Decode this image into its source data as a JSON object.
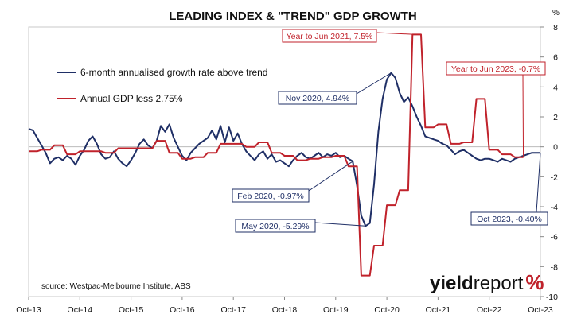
{
  "chart_data": {
    "type": "line",
    "title": "LEADING INDEX & \"TREND\" GDP GROWTH",
    "y_unit": "%",
    "ylim": [
      -10,
      8
    ],
    "yticks": [
      -10,
      -8,
      -6,
      -4,
      -2,
      0,
      2,
      4,
      6,
      8
    ],
    "xlim": [
      "2013-10",
      "2023-10"
    ],
    "x_tick_labels": [
      "Oct-13",
      "Oct-14",
      "Oct-15",
      "Oct-16",
      "Oct-17",
      "Oct-18",
      "Oct-19",
      "Oct-20",
      "Oct-21",
      "Oct-22",
      "Oct-23"
    ],
    "legend_position": "top-left",
    "grid": false,
    "series": [
      {
        "name": "6-month annualised growth rate above trend",
        "color": "#1f2f66",
        "points": [
          [
            "2013-10",
            1.2
          ],
          [
            "2013-11",
            1.1
          ],
          [
            "2013-12",
            0.6
          ],
          [
            "2014-01",
            0.1
          ],
          [
            "2014-02",
            -0.4
          ],
          [
            "2014-03",
            -1.1
          ],
          [
            "2014-04",
            -0.8
          ],
          [
            "2014-05",
            -0.7
          ],
          [
            "2014-06",
            -0.9
          ],
          [
            "2014-07",
            -0.6
          ],
          [
            "2014-08",
            -0.8
          ],
          [
            "2014-09",
            -1.2
          ],
          [
            "2014-10",
            -0.6
          ],
          [
            "2014-11",
            -0.2
          ],
          [
            "2014-12",
            0.4
          ],
          [
            "2015-01",
            0.7
          ],
          [
            "2015-02",
            0.2
          ],
          [
            "2015-03",
            -0.5
          ],
          [
            "2015-04",
            -0.8
          ],
          [
            "2015-05",
            -0.7
          ],
          [
            "2015-06",
            -0.3
          ],
          [
            "2015-07",
            -0.8
          ],
          [
            "2015-08",
            -1.1
          ],
          [
            "2015-09",
            -1.3
          ],
          [
            "2015-10",
            -0.9
          ],
          [
            "2015-11",
            -0.4
          ],
          [
            "2015-12",
            0.2
          ],
          [
            "2016-01",
            0.5
          ],
          [
            "2016-02",
            0.1
          ],
          [
            "2016-03",
            -0.1
          ],
          [
            "2016-04",
            0.4
          ],
          [
            "2016-05",
            1.4
          ],
          [
            "2016-06",
            1.0
          ],
          [
            "2016-07",
            1.5
          ],
          [
            "2016-08",
            0.6
          ],
          [
            "2016-09",
            0.0
          ],
          [
            "2016-10",
            -0.6
          ],
          [
            "2016-11",
            -0.9
          ],
          [
            "2016-12",
            -0.4
          ],
          [
            "2017-01",
            -0.1
          ],
          [
            "2017-02",
            0.2
          ],
          [
            "2017-03",
            0.4
          ],
          [
            "2017-04",
            0.6
          ],
          [
            "2017-05",
            1.1
          ],
          [
            "2017-06",
            0.5
          ],
          [
            "2017-07",
            1.4
          ],
          [
            "2017-08",
            0.3
          ],
          [
            "2017-09",
            1.3
          ],
          [
            "2017-10",
            0.4
          ],
          [
            "2017-11",
            0.9
          ],
          [
            "2017-12",
            0.2
          ],
          [
            "2018-01",
            -0.3
          ],
          [
            "2018-02",
            -0.6
          ],
          [
            "2018-03",
            -0.9
          ],
          [
            "2018-04",
            -0.5
          ],
          [
            "2018-05",
            -0.3
          ],
          [
            "2018-06",
            -0.8
          ],
          [
            "2018-07",
            -0.5
          ],
          [
            "2018-08",
            -1.0
          ],
          [
            "2018-09",
            -0.9
          ],
          [
            "2018-10",
            -1.1
          ],
          [
            "2018-11",
            -1.3
          ],
          [
            "2018-12",
            -0.9
          ],
          [
            "2019-01",
            -0.6
          ],
          [
            "2019-02",
            -0.4
          ],
          [
            "2019-03",
            -0.7
          ],
          [
            "2019-04",
            -0.8
          ],
          [
            "2019-05",
            -0.6
          ],
          [
            "2019-06",
            -0.4
          ],
          [
            "2019-07",
            -0.7
          ],
          [
            "2019-08",
            -0.5
          ],
          [
            "2019-09",
            -0.6
          ],
          [
            "2019-10",
            -0.4
          ],
          [
            "2019-11",
            -0.7
          ],
          [
            "2019-12",
            -0.6
          ],
          [
            "2020-01",
            -0.8
          ],
          [
            "2020-02",
            -0.97
          ],
          [
            "2020-03",
            -2.6
          ],
          [
            "2020-04",
            -4.6
          ],
          [
            "2020-05",
            -5.29
          ],
          [
            "2020-06",
            -5.1
          ],
          [
            "2020-07",
            -2.5
          ],
          [
            "2020-08",
            1.0
          ],
          [
            "2020-09",
            3.2
          ],
          [
            "2020-10",
            4.5
          ],
          [
            "2020-11",
            4.94
          ],
          [
            "2020-12",
            4.6
          ],
          [
            "2021-01",
            3.6
          ],
          [
            "2021-02",
            3.0
          ],
          [
            "2021-03",
            3.3
          ],
          [
            "2021-04",
            2.7
          ],
          [
            "2021-05",
            2.0
          ],
          [
            "2021-06",
            1.4
          ],
          [
            "2021-07",
            0.7
          ],
          [
            "2021-08",
            0.6
          ],
          [
            "2021-09",
            0.5
          ],
          [
            "2021-10",
            0.4
          ],
          [
            "2021-11",
            0.2
          ],
          [
            "2021-12",
            0.1
          ],
          [
            "2022-01",
            -0.2
          ],
          [
            "2022-02",
            -0.5
          ],
          [
            "2022-03",
            -0.3
          ],
          [
            "2022-04",
            -0.2
          ],
          [
            "2022-05",
            -0.4
          ],
          [
            "2022-06",
            -0.6
          ],
          [
            "2022-07",
            -0.8
          ],
          [
            "2022-08",
            -0.9
          ],
          [
            "2022-09",
            -0.8
          ],
          [
            "2022-10",
            -0.8
          ],
          [
            "2022-11",
            -0.9
          ],
          [
            "2022-12",
            -1.0
          ],
          [
            "2023-01",
            -0.8
          ],
          [
            "2023-02",
            -0.9
          ],
          [
            "2023-03",
            -1.0
          ],
          [
            "2023-04",
            -0.8
          ],
          [
            "2023-05",
            -0.7
          ],
          [
            "2023-06",
            -0.6
          ],
          [
            "2023-07",
            -0.5
          ],
          [
            "2023-08",
            -0.4
          ],
          [
            "2023-09",
            -0.4
          ],
          [
            "2023-10",
            -0.4
          ]
        ]
      },
      {
        "name": "Annual GDP less 2.75%",
        "color": "#c0222b",
        "points": [
          [
            "2013-10",
            -0.3
          ],
          [
            "2013-12",
            -0.3
          ],
          [
            "2014-01",
            -0.2
          ],
          [
            "2014-03",
            -0.2
          ],
          [
            "2014-04",
            0.1
          ],
          [
            "2014-06",
            0.1
          ],
          [
            "2014-07",
            -0.5
          ],
          [
            "2014-09",
            -0.5
          ],
          [
            "2014-10",
            -0.3
          ],
          [
            "2014-12",
            -0.3
          ],
          [
            "2015-01",
            -0.3
          ],
          [
            "2015-03",
            -0.3
          ],
          [
            "2015-04",
            -0.4
          ],
          [
            "2015-06",
            -0.4
          ],
          [
            "2015-07",
            -0.1
          ],
          [
            "2015-09",
            -0.1
          ],
          [
            "2015-10",
            -0.1
          ],
          [
            "2015-12",
            -0.1
          ],
          [
            "2016-01",
            -0.1
          ],
          [
            "2016-03",
            -0.1
          ],
          [
            "2016-04",
            0.4
          ],
          [
            "2016-06",
            0.4
          ],
          [
            "2016-07",
            -0.4
          ],
          [
            "2016-09",
            -0.4
          ],
          [
            "2016-10",
            -0.8
          ],
          [
            "2016-12",
            -0.8
          ],
          [
            "2017-01",
            -0.7
          ],
          [
            "2017-03",
            -0.7
          ],
          [
            "2017-04",
            -0.4
          ],
          [
            "2017-06",
            -0.4
          ],
          [
            "2017-07",
            0.2
          ],
          [
            "2017-09",
            0.2
          ],
          [
            "2017-10",
            0.2
          ],
          [
            "2017-12",
            0.2
          ],
          [
            "2018-01",
            0.0
          ],
          [
            "2018-03",
            0.0
          ],
          [
            "2018-04",
            0.3
          ],
          [
            "2018-06",
            0.3
          ],
          [
            "2018-07",
            -0.4
          ],
          [
            "2018-09",
            -0.4
          ],
          [
            "2018-10",
            -0.6
          ],
          [
            "2018-12",
            -0.6
          ],
          [
            "2019-01",
            -0.9
          ],
          [
            "2019-03",
            -0.9
          ],
          [
            "2019-04",
            -0.8
          ],
          [
            "2019-06",
            -0.8
          ],
          [
            "2019-07",
            -0.7
          ],
          [
            "2019-09",
            -0.7
          ],
          [
            "2019-10",
            -0.6
          ],
          [
            "2019-12",
            -0.6
          ],
          [
            "2020-01",
            -1.3
          ],
          [
            "2020-03",
            -1.3
          ],
          [
            "2020-04",
            -8.6
          ],
          [
            "2020-06",
            -8.6
          ],
          [
            "2020-07",
            -6.6
          ],
          [
            "2020-09",
            -6.6
          ],
          [
            "2020-10",
            -3.9
          ],
          [
            "2020-12",
            -3.9
          ],
          [
            "2021-01",
            -2.9
          ],
          [
            "2021-03",
            -2.9
          ],
          [
            "2021-04",
            7.5
          ],
          [
            "2021-06",
            7.5
          ],
          [
            "2021-07",
            1.3
          ],
          [
            "2021-09",
            1.3
          ],
          [
            "2021-10",
            1.5
          ],
          [
            "2021-12",
            1.5
          ],
          [
            "2022-01",
            0.2
          ],
          [
            "2022-03",
            0.2
          ],
          [
            "2022-04",
            0.3
          ],
          [
            "2022-06",
            0.3
          ],
          [
            "2022-07",
            3.2
          ],
          [
            "2022-09",
            3.2
          ],
          [
            "2022-10",
            -0.2
          ],
          [
            "2022-12",
            -0.2
          ],
          [
            "2023-01",
            -0.5
          ],
          [
            "2023-03",
            -0.5
          ],
          [
            "2023-04",
            -0.7
          ],
          [
            "2023-06",
            -0.7
          ]
        ]
      }
    ],
    "annotations": [
      {
        "text": "Year to Jun 2021, 7.5%",
        "color": "#c0222b",
        "target": [
          "2021-05",
          7.5
        ]
      },
      {
        "text": "Year to Jun 2023, -0.7%",
        "color": "#c0222b",
        "target": [
          "2023-06",
          -0.7
        ]
      },
      {
        "text": "Nov 2020, 4.94%",
        "color": "#1f2f66",
        "target": [
          "2020-11",
          4.94
        ]
      },
      {
        "text": "Feb 2020, -0.97%",
        "color": "#1f2f66",
        "target": [
          "2020-02",
          -0.97
        ]
      },
      {
        "text": "May 2020, -5.29%",
        "color": "#1f2f66",
        "target": [
          "2020-05",
          -5.29
        ]
      },
      {
        "text": "Oct 2023, -0.40%",
        "color": "#1f2f66",
        "target": [
          "2023-10",
          -0.4
        ]
      }
    ],
    "source": "source: Westpac-Melbourne Institute, ABS"
  },
  "branding": {
    "part1": "yield",
    "part2": "report",
    "pct": "%"
  }
}
